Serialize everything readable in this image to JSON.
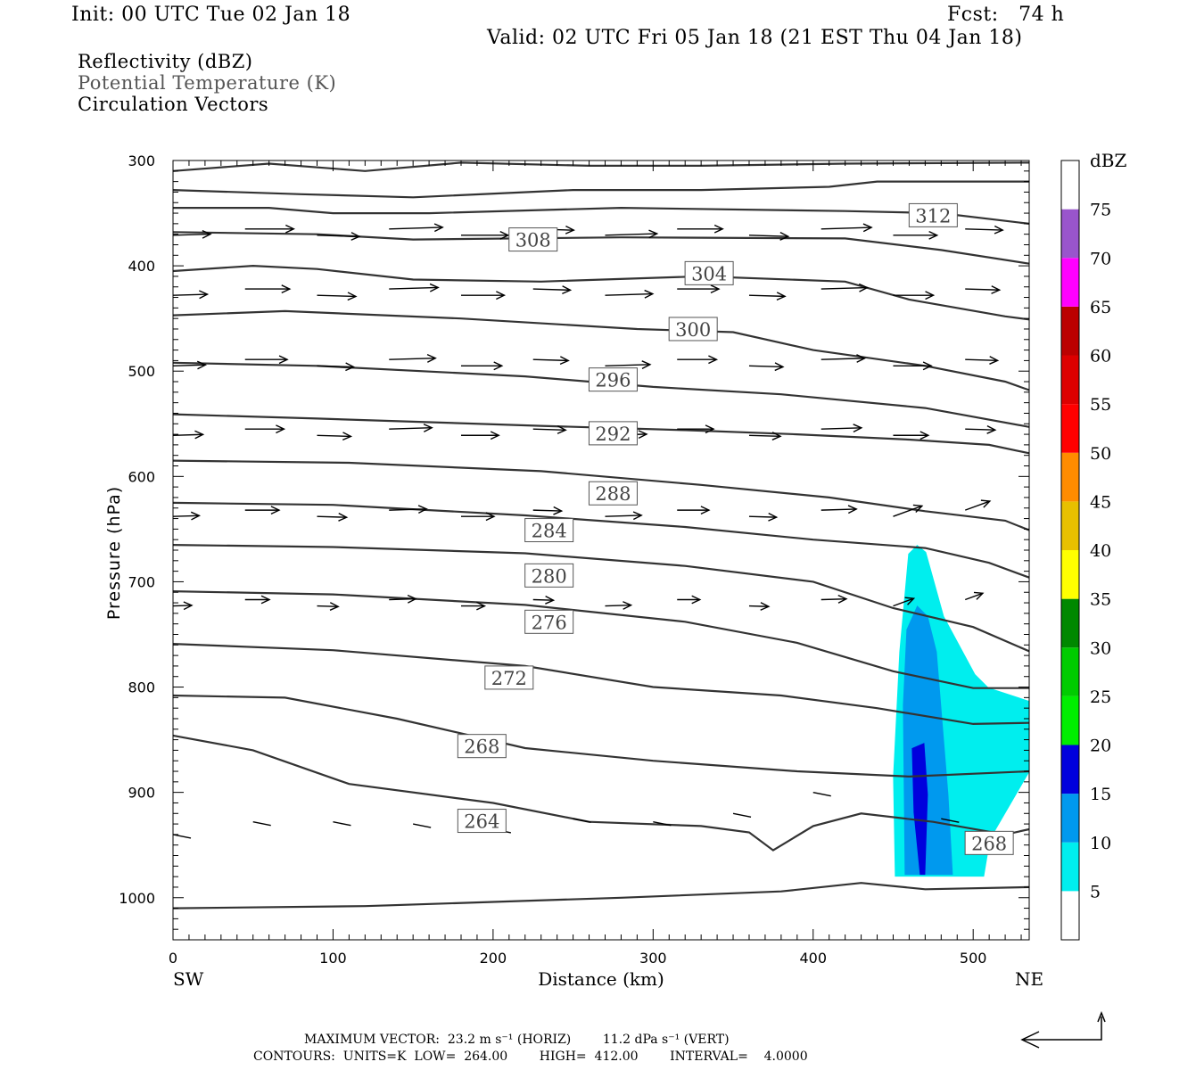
{
  "header": {
    "init": "Init: 00 UTC Tue 02 Jan 18",
    "fcst": "Fcst:   74 h",
    "valid": "Valid: 02 UTC Fri 05 Jan 18 (21 EST Thu 04 Jan 18)",
    "field1": "Reflectivity (dBZ)",
    "field2": "Potential Temperature (K)",
    "field3": "Circulation Vectors"
  },
  "axes": {
    "ylabel": "Pressure (hPa)",
    "xlabel": "Distance (km)",
    "left_end": "SW",
    "right_end": "NE",
    "colorbar_unit": "dBZ"
  },
  "footer": {
    "vector_line": "MAXIMUM VECTOR:  23.2 m s⁻¹ (HORIZ)        11.2 dPa s⁻¹ (VERT)",
    "contours_line": "CONTOURS:  UNITS=K  LOW=  264.00        HIGH=  412.00        INTERVAL=    4.0000"
  },
  "chart_data": {
    "type": "cross-section contour",
    "x": {
      "label": "Distance (km)",
      "range": [
        0,
        535
      ],
      "ticks": [
        0,
        100,
        200,
        300,
        400,
        500
      ]
    },
    "y": {
      "label": "Pressure (hPa)",
      "range": [
        1040,
        300
      ],
      "ticks": [
        300,
        400,
        500,
        600,
        700,
        800,
        900,
        1000
      ]
    },
    "colorbar": {
      "unit": "dBZ",
      "levels": [
        5,
        10,
        15,
        20,
        25,
        30,
        35,
        40,
        45,
        50,
        55,
        60,
        65,
        70,
        75
      ],
      "colors": [
        "#00eeee",
        "#0099ee",
        "#0000dd",
        "#00ee00",
        "#00cc00",
        "#008800",
        "#ffff00",
        "#e8c000",
        "#ff8c00",
        "#ff0000",
        "#dd0000",
        "#bb0000",
        "#ff00ff",
        "#9955cc",
        "#ffffff"
      ]
    },
    "theta_contour_labels": [
      {
        "value": "312",
        "x": 475,
        "p": 352
      },
      {
        "value": "308",
        "x": 225,
        "p": 375
      },
      {
        "value": "304",
        "x": 335,
        "p": 407
      },
      {
        "value": "300",
        "x": 325,
        "p": 460
      },
      {
        "value": "296",
        "x": 275,
        "p": 508
      },
      {
        "value": "292",
        "x": 275,
        "p": 559
      },
      {
        "value": "288",
        "x": 275,
        "p": 616
      },
      {
        "value": "284",
        "x": 235,
        "p": 651
      },
      {
        "value": "280",
        "x": 235,
        "p": 694
      },
      {
        "value": "276",
        "x": 235,
        "p": 738
      },
      {
        "value": "272",
        "x": 210,
        "p": 791
      },
      {
        "value": "268",
        "x": 193,
        "p": 856
      },
      {
        "value": "264",
        "x": 193,
        "p": 927
      },
      {
        "value": "268",
        "x": 510,
        "p": 948
      }
    ],
    "theta_contours": [
      [
        [
          0,
          310
        ],
        [
          60,
          303
        ],
        [
          120,
          310
        ],
        [
          180,
          302
        ],
        [
          260,
          305
        ],
        [
          330,
          305
        ],
        [
          420,
          303
        ],
        [
          535,
          302
        ]
      ],
      [
        [
          0,
          328
        ],
        [
          80,
          332
        ],
        [
          150,
          335
        ],
        [
          250,
          328
        ],
        [
          330,
          328
        ],
        [
          410,
          325
        ],
        [
          440,
          320
        ],
        [
          535,
          320
        ]
      ],
      [
        [
          0,
          345
        ],
        [
          60,
          345
        ],
        [
          100,
          350
        ],
        [
          160,
          350
        ],
        [
          280,
          345
        ],
        [
          420,
          348
        ],
        [
          480,
          350
        ],
        [
          535,
          360
        ]
      ],
      [
        [
          0,
          368
        ],
        [
          90,
          370
        ],
        [
          150,
          375
        ],
        [
          280,
          373
        ],
        [
          420,
          374
        ],
        [
          480,
          385
        ],
        [
          535,
          398
        ]
      ],
      [
        [
          0,
          405
        ],
        [
          50,
          400
        ],
        [
          90,
          403
        ],
        [
          150,
          413
        ],
        [
          230,
          415
        ],
        [
          330,
          410
        ],
        [
          420,
          415
        ],
        [
          460,
          432
        ],
        [
          520,
          448
        ],
        [
          535,
          451
        ]
      ],
      [
        [
          0,
          447
        ],
        [
          70,
          443
        ],
        [
          180,
          450
        ],
        [
          290,
          460
        ],
        [
          350,
          463
        ],
        [
          400,
          480
        ],
        [
          470,
          495
        ],
        [
          520,
          510
        ],
        [
          535,
          518
        ]
      ],
      [
        [
          0,
          492
        ],
        [
          90,
          495
        ],
        [
          220,
          505
        ],
        [
          300,
          515
        ],
        [
          380,
          522
        ],
        [
          470,
          535
        ],
        [
          535,
          553
        ]
      ],
      [
        [
          0,
          541
        ],
        [
          90,
          545
        ],
        [
          230,
          552
        ],
        [
          320,
          556
        ],
        [
          390,
          560
        ],
        [
          460,
          565
        ],
        [
          510,
          570
        ],
        [
          535,
          578
        ]
      ],
      [
        [
          0,
          585
        ],
        [
          110,
          587
        ],
        [
          230,
          595
        ],
        [
          330,
          608
        ],
        [
          410,
          620
        ],
        [
          470,
          633
        ],
        [
          520,
          642
        ],
        [
          535,
          651
        ]
      ],
      [
        [
          0,
          625
        ],
        [
          100,
          627
        ],
        [
          220,
          637
        ],
        [
          320,
          648
        ],
        [
          400,
          660
        ],
        [
          470,
          668
        ],
        [
          510,
          682
        ],
        [
          535,
          696
        ]
      ],
      [
        [
          0,
          665
        ],
        [
          100,
          667
        ],
        [
          220,
          673
        ],
        [
          320,
          685
        ],
        [
          400,
          700
        ],
        [
          450,
          725
        ],
        [
          500,
          743
        ],
        [
          535,
          766
        ]
      ],
      [
        [
          0,
          709
        ],
        [
          100,
          712
        ],
        [
          220,
          722
        ],
        [
          320,
          738
        ],
        [
          390,
          758
        ],
        [
          450,
          785
        ],
        [
          500,
          801
        ],
        [
          535,
          801
        ]
      ],
      [
        [
          0,
          759
        ],
        [
          100,
          765
        ],
        [
          220,
          780
        ],
        [
          300,
          800
        ],
        [
          380,
          808
        ],
        [
          440,
          820
        ],
        [
          500,
          835
        ],
        [
          535,
          834
        ]
      ],
      [
        [
          0,
          808
        ],
        [
          70,
          810
        ],
        [
          140,
          830
        ],
        [
          220,
          858
        ],
        [
          300,
          870
        ],
        [
          390,
          880
        ],
        [
          460,
          885
        ],
        [
          535,
          880
        ]
      ],
      [
        [
          0,
          846
        ],
        [
          50,
          860
        ],
        [
          110,
          892
        ],
        [
          200,
          910
        ],
        [
          260,
          928
        ],
        [
          330,
          932
        ],
        [
          360,
          938
        ],
        [
          375,
          955
        ],
        [
          400,
          932
        ],
        [
          430,
          920
        ],
        [
          475,
          928
        ],
        [
          520,
          940
        ],
        [
          535,
          935
        ]
      ],
      [
        [
          0,
          1010
        ],
        [
          120,
          1008
        ],
        [
          200,
          1004
        ],
        [
          280,
          1000
        ],
        [
          380,
          994
        ],
        [
          430,
          986
        ],
        [
          470,
          992
        ],
        [
          535,
          990
        ]
      ]
    ],
    "reflectivity": {
      "max_dbz": 15,
      "core_x_km": 465,
      "top_5dbz_hPa": 665,
      "bottom_hPa": 980
    },
    "max_vector_horiz_m_s": 23.2,
    "max_vector_vert_dPa_s": 11.2,
    "contour_low": 264.0,
    "contour_high": 412.0,
    "contour_interval": 4.0
  }
}
